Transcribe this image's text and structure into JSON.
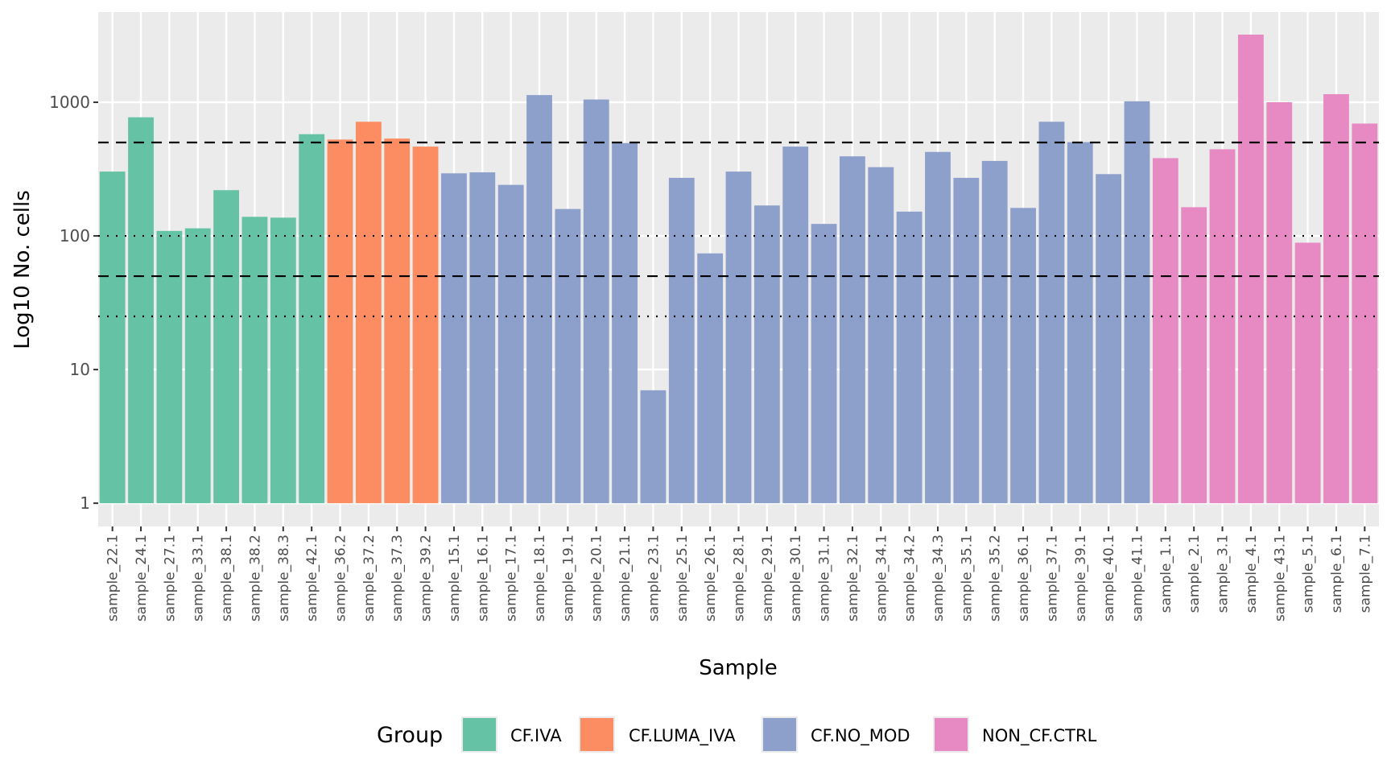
{
  "chart_data": {
    "type": "bar",
    "title": "",
    "xlabel": "Sample",
    "ylabel": "Log10 No. cells",
    "yscale": "log10",
    "ylim": [
      0.67,
      4730
    ],
    "yticks": [
      1,
      10,
      100,
      1000
    ],
    "ytick_labels": [
      "1",
      "10",
      "100",
      "1000"
    ],
    "grid": true,
    "legend": {
      "title": "Group",
      "position": "bottom",
      "entries": [
        {
          "label": "CF.IVA",
          "color": "#66C2A5"
        },
        {
          "label": "CF.LUMA_IVA",
          "color": "#FC8D62"
        },
        {
          "label": "CF.NO_MOD",
          "color": "#8DA0CB"
        },
        {
          "label": "NON_CF.CTRL",
          "color": "#E78AC3"
        }
      ]
    },
    "reference_lines": [
      {
        "value": 500,
        "style": "dashed"
      },
      {
        "value": 100,
        "style": "dotted"
      },
      {
        "value": 50,
        "style": "dashed"
      },
      {
        "value": 25,
        "style": "dotted"
      }
    ],
    "categories": [
      "sample_22.1",
      "sample_24.1",
      "sample_27.1",
      "sample_33.1",
      "sample_38.1",
      "sample_38.2",
      "sample_38.3",
      "sample_42.1",
      "sample_36.2",
      "sample_37.2",
      "sample_37.3",
      "sample_39.2",
      "sample_15.1",
      "sample_16.1",
      "sample_17.1",
      "sample_18.1",
      "sample_19.1",
      "sample_20.1",
      "sample_21.1",
      "sample_23.1",
      "sample_25.1",
      "sample_26.1",
      "sample_28.1",
      "sample_29.1",
      "sample_30.1",
      "sample_31.1",
      "sample_32.1",
      "sample_34.1",
      "sample_34.2",
      "sample_34.3",
      "sample_35.1",
      "sample_35.2",
      "sample_36.1",
      "sample_37.1",
      "sample_39.1",
      "sample_40.1",
      "sample_41.1",
      "sample_1.1",
      "sample_2.1",
      "sample_3.1",
      "sample_4.1",
      "sample_43.1",
      "sample_5.1",
      "sample_6.1",
      "sample_7.1"
    ],
    "values": [
      303,
      772,
      109,
      114,
      220,
      139,
      137,
      577,
      526,
      715,
      535,
      466,
      294,
      299,
      241,
      1132,
      159,
      1049,
      495,
      7,
      272,
      74,
      303,
      169,
      466,
      123,
      394,
      327,
      152,
      425,
      272,
      364,
      162,
      715,
      503,
      290,
      1017,
      382,
      164,
      445,
      3208,
      1001,
      89,
      1150,
      693
    ],
    "groups": [
      0,
      0,
      0,
      0,
      0,
      0,
      0,
      0,
      1,
      1,
      1,
      1,
      2,
      2,
      2,
      2,
      2,
      2,
      2,
      2,
      2,
      2,
      2,
      2,
      2,
      2,
      2,
      2,
      2,
      2,
      2,
      2,
      2,
      2,
      2,
      2,
      2,
      3,
      3,
      3,
      3,
      3,
      3,
      3,
      3
    ]
  }
}
